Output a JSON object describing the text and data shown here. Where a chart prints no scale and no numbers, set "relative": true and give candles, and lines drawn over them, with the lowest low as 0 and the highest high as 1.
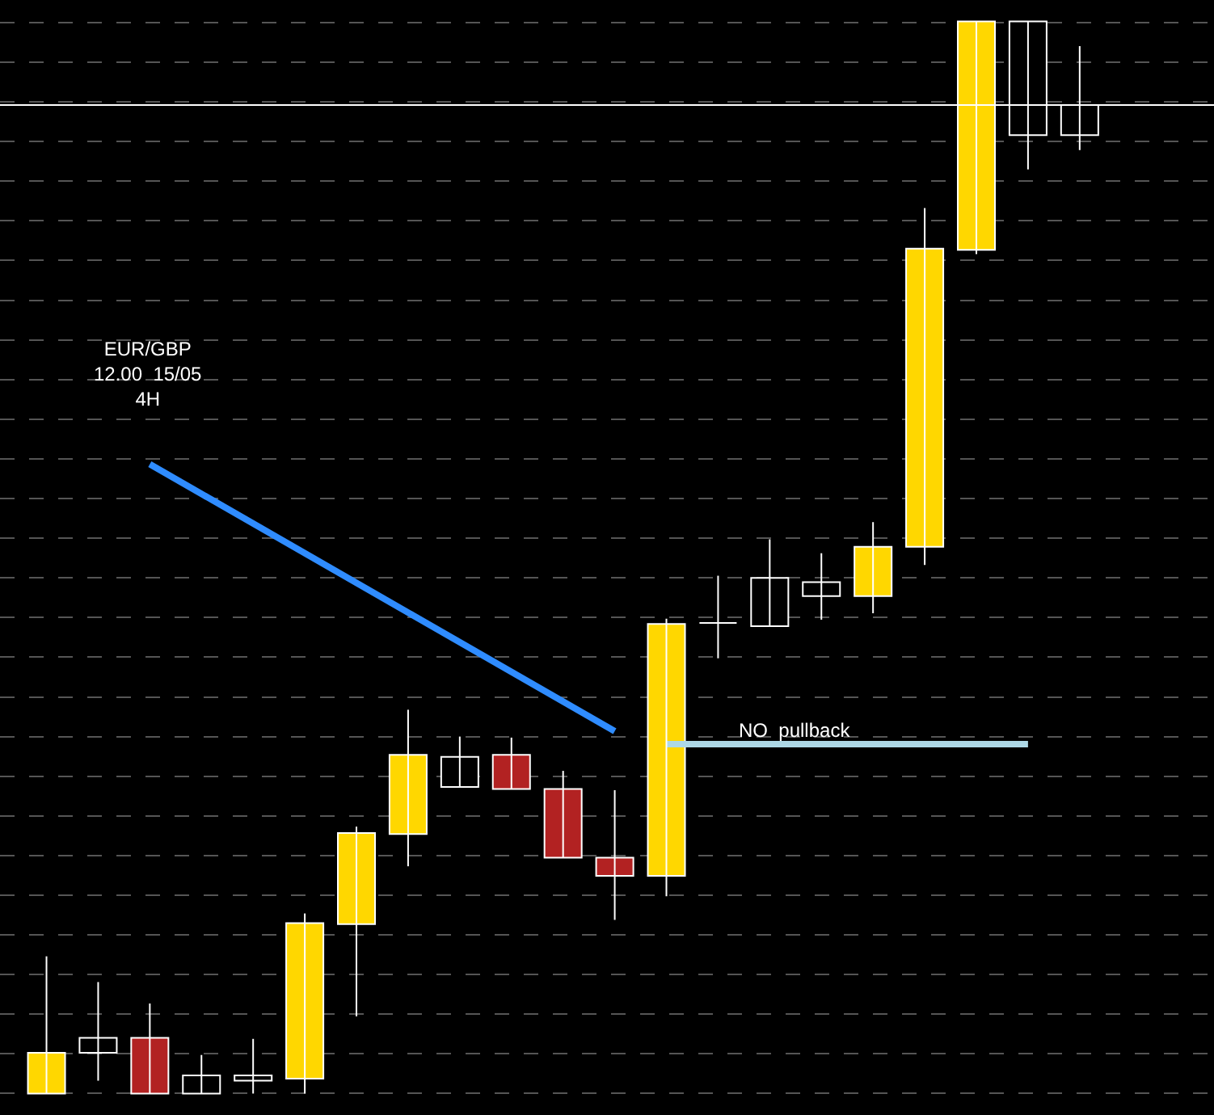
{
  "chart_data": {
    "type": "candlestick",
    "relative": true,
    "grid": "y",
    "categories": [
      null,
      null,
      null,
      null,
      null,
      null,
      null,
      null,
      null,
      null,
      null,
      null,
      null,
      null,
      null,
      null,
      null,
      null,
      null,
      null,
      null
    ],
    "ohlc": [
      [
        0,
        0.128,
        0,
        0.038
      ],
      [
        0.038,
        0.104,
        0.012,
        0.052
      ],
      [
        0.052,
        0.084,
        0,
        0
      ],
      [
        0,
        0.036,
        0,
        0.017
      ],
      [
        0.012,
        0.051,
        0,
        0.017
      ],
      [
        0.014,
        0.168,
        0,
        0.159
      ],
      [
        0.158,
        0.249,
        0.072,
        0.243
      ],
      [
        0.242,
        0.358,
        0.212,
        0.316
      ],
      [
        0.314,
        0.333,
        0.286,
        0.286
      ],
      [
        0.316,
        0.332,
        0.284,
        0.284
      ],
      [
        0.284,
        0.301,
        0.22,
        0.22
      ],
      [
        0.22,
        0.283,
        0.162,
        0.203
      ],
      [
        0.203,
        0.443,
        0.184,
        0.438
      ],
      [
        0.439,
        0.483,
        0.406,
        0.439
      ],
      [
        0.436,
        0.517,
        0.436,
        0.481
      ],
      [
        0.464,
        0.504,
        0.442,
        0.477
      ],
      [
        0.464,
        0.533,
        0.448,
        0.51
      ],
      [
        0.51,
        0.826,
        0.493,
        0.788
      ],
      [
        0.787,
        1,
        0.783,
        1
      ],
      [
        1,
        1,
        0.862,
        0.894
      ],
      [
        0.922,
        0.977,
        0.88,
        0.894
      ]
    ],
    "colors": [
      "#ffd700",
      "#000000",
      "#b22222",
      "#000000",
      "#000000",
      "#ffd700",
      "#ffd700",
      "#ffd700",
      "#000000",
      "#b22222",
      "#b22222",
      "#b22222",
      "#ffd700",
      "#ffffff",
      "#000000",
      "#000000",
      "#ffd700",
      "#ffd700",
      "#ffd700",
      "#000000",
      "#000000"
    ],
    "series": [
      {
        "type": "line",
        "color": "#2f8cff",
        "values": [
          null,
          null,
          0.587,
          null,
          null,
          null,
          null,
          null,
          null,
          null,
          null,
          0.338,
          null,
          null,
          null,
          null,
          null,
          null,
          null,
          null,
          null
        ]
      },
      {
        "type": "line",
        "color": "#add8e6",
        "values": [
          null,
          null,
          null,
          null,
          null,
          null,
          null,
          null,
          null,
          null,
          null,
          null,
          0.326,
          null,
          null,
          null,
          null,
          null,
          null,
          0.326,
          null
        ]
      }
    ],
    "ref_lines": [
      {
        "axis": "y",
        "value": 0.922,
        "color": "#ffffff",
        "line_style": "solid"
      }
    ],
    "annotations": [
      "EUR/GBP\n12.00  15/05\n4H",
      "NO  pullback"
    ]
  }
}
